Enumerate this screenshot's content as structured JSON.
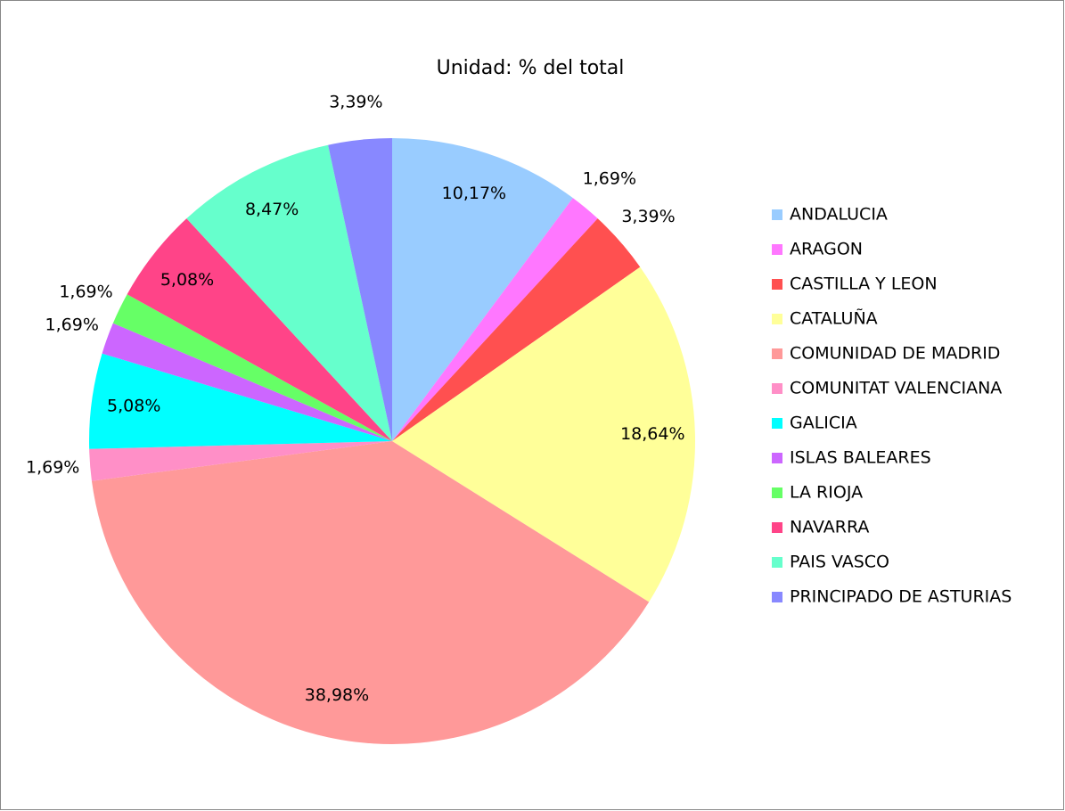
{
  "chart_data": {
    "type": "pie",
    "title": "Unidad: % del total",
    "categories": [
      "ANDALUCIA",
      "ARAGON",
      "CASTILLA Y LEON",
      "CATALUÑA",
      "COMUNIDAD DE MADRID",
      "COMUNITAT VALENCIANA",
      "GALICIA",
      "ISLAS BALEARES",
      "LA RIOJA",
      "NAVARRA",
      "PAIS VASCO",
      "PRINCIPADO DE ASTURIAS"
    ],
    "values": [
      10.17,
      1.69,
      3.39,
      18.64,
      38.98,
      1.69,
      5.08,
      1.69,
      1.69,
      5.08,
      8.47,
      3.39
    ],
    "value_labels": [
      "10,17%",
      "1,69%",
      "3,39%",
      "18,64%",
      "38,98%",
      "1,69%",
      "5,08%",
      "1,69%",
      "1,69%",
      "5,08%",
      "8,47%",
      "3,39%"
    ],
    "colors": [
      "#99ccff",
      "#ff77ff",
      "#ff5050",
      "#ffff99",
      "#ff9999",
      "#ff8fc7",
      "#00ffff",
      "#cc66ff",
      "#66ff66",
      "#ff4488",
      "#66ffcc",
      "#8888ff"
    ],
    "legend": "right"
  }
}
